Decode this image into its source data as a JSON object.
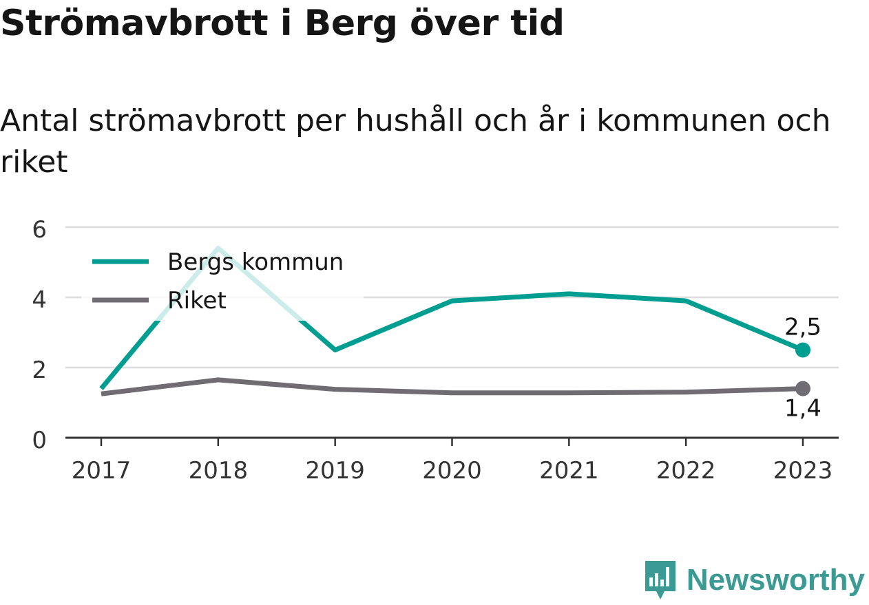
{
  "header": {
    "title": "Strömavbrott i Berg över tid",
    "subtitle": "Antal strömavbrott per hushåll och år i kommunen och riket"
  },
  "brand": {
    "name": "Newsworthy",
    "icon": "newsworthy-logo-icon",
    "color": "#3b9a93"
  },
  "chart_data": {
    "type": "line",
    "x": [
      "2017",
      "2018",
      "2019",
      "2020",
      "2021",
      "2022",
      "2023"
    ],
    "ylim": [
      0,
      6
    ],
    "yticks": [
      0,
      2,
      4,
      6
    ],
    "grid": true,
    "legend_position": "top-left",
    "series": [
      {
        "name": "Bergs kommun",
        "color": "#009e91",
        "values": [
          1.4,
          5.4,
          2.5,
          3.9,
          4.1,
          3.9,
          2.5
        ],
        "end_label": "2,5",
        "end_label_position": "above"
      },
      {
        "name": "Riket",
        "color": "#6f6d72",
        "values": [
          1.25,
          1.65,
          1.38,
          1.28,
          1.28,
          1.3,
          1.4
        ],
        "end_label": "1,4",
        "end_label_position": "below"
      }
    ]
  }
}
